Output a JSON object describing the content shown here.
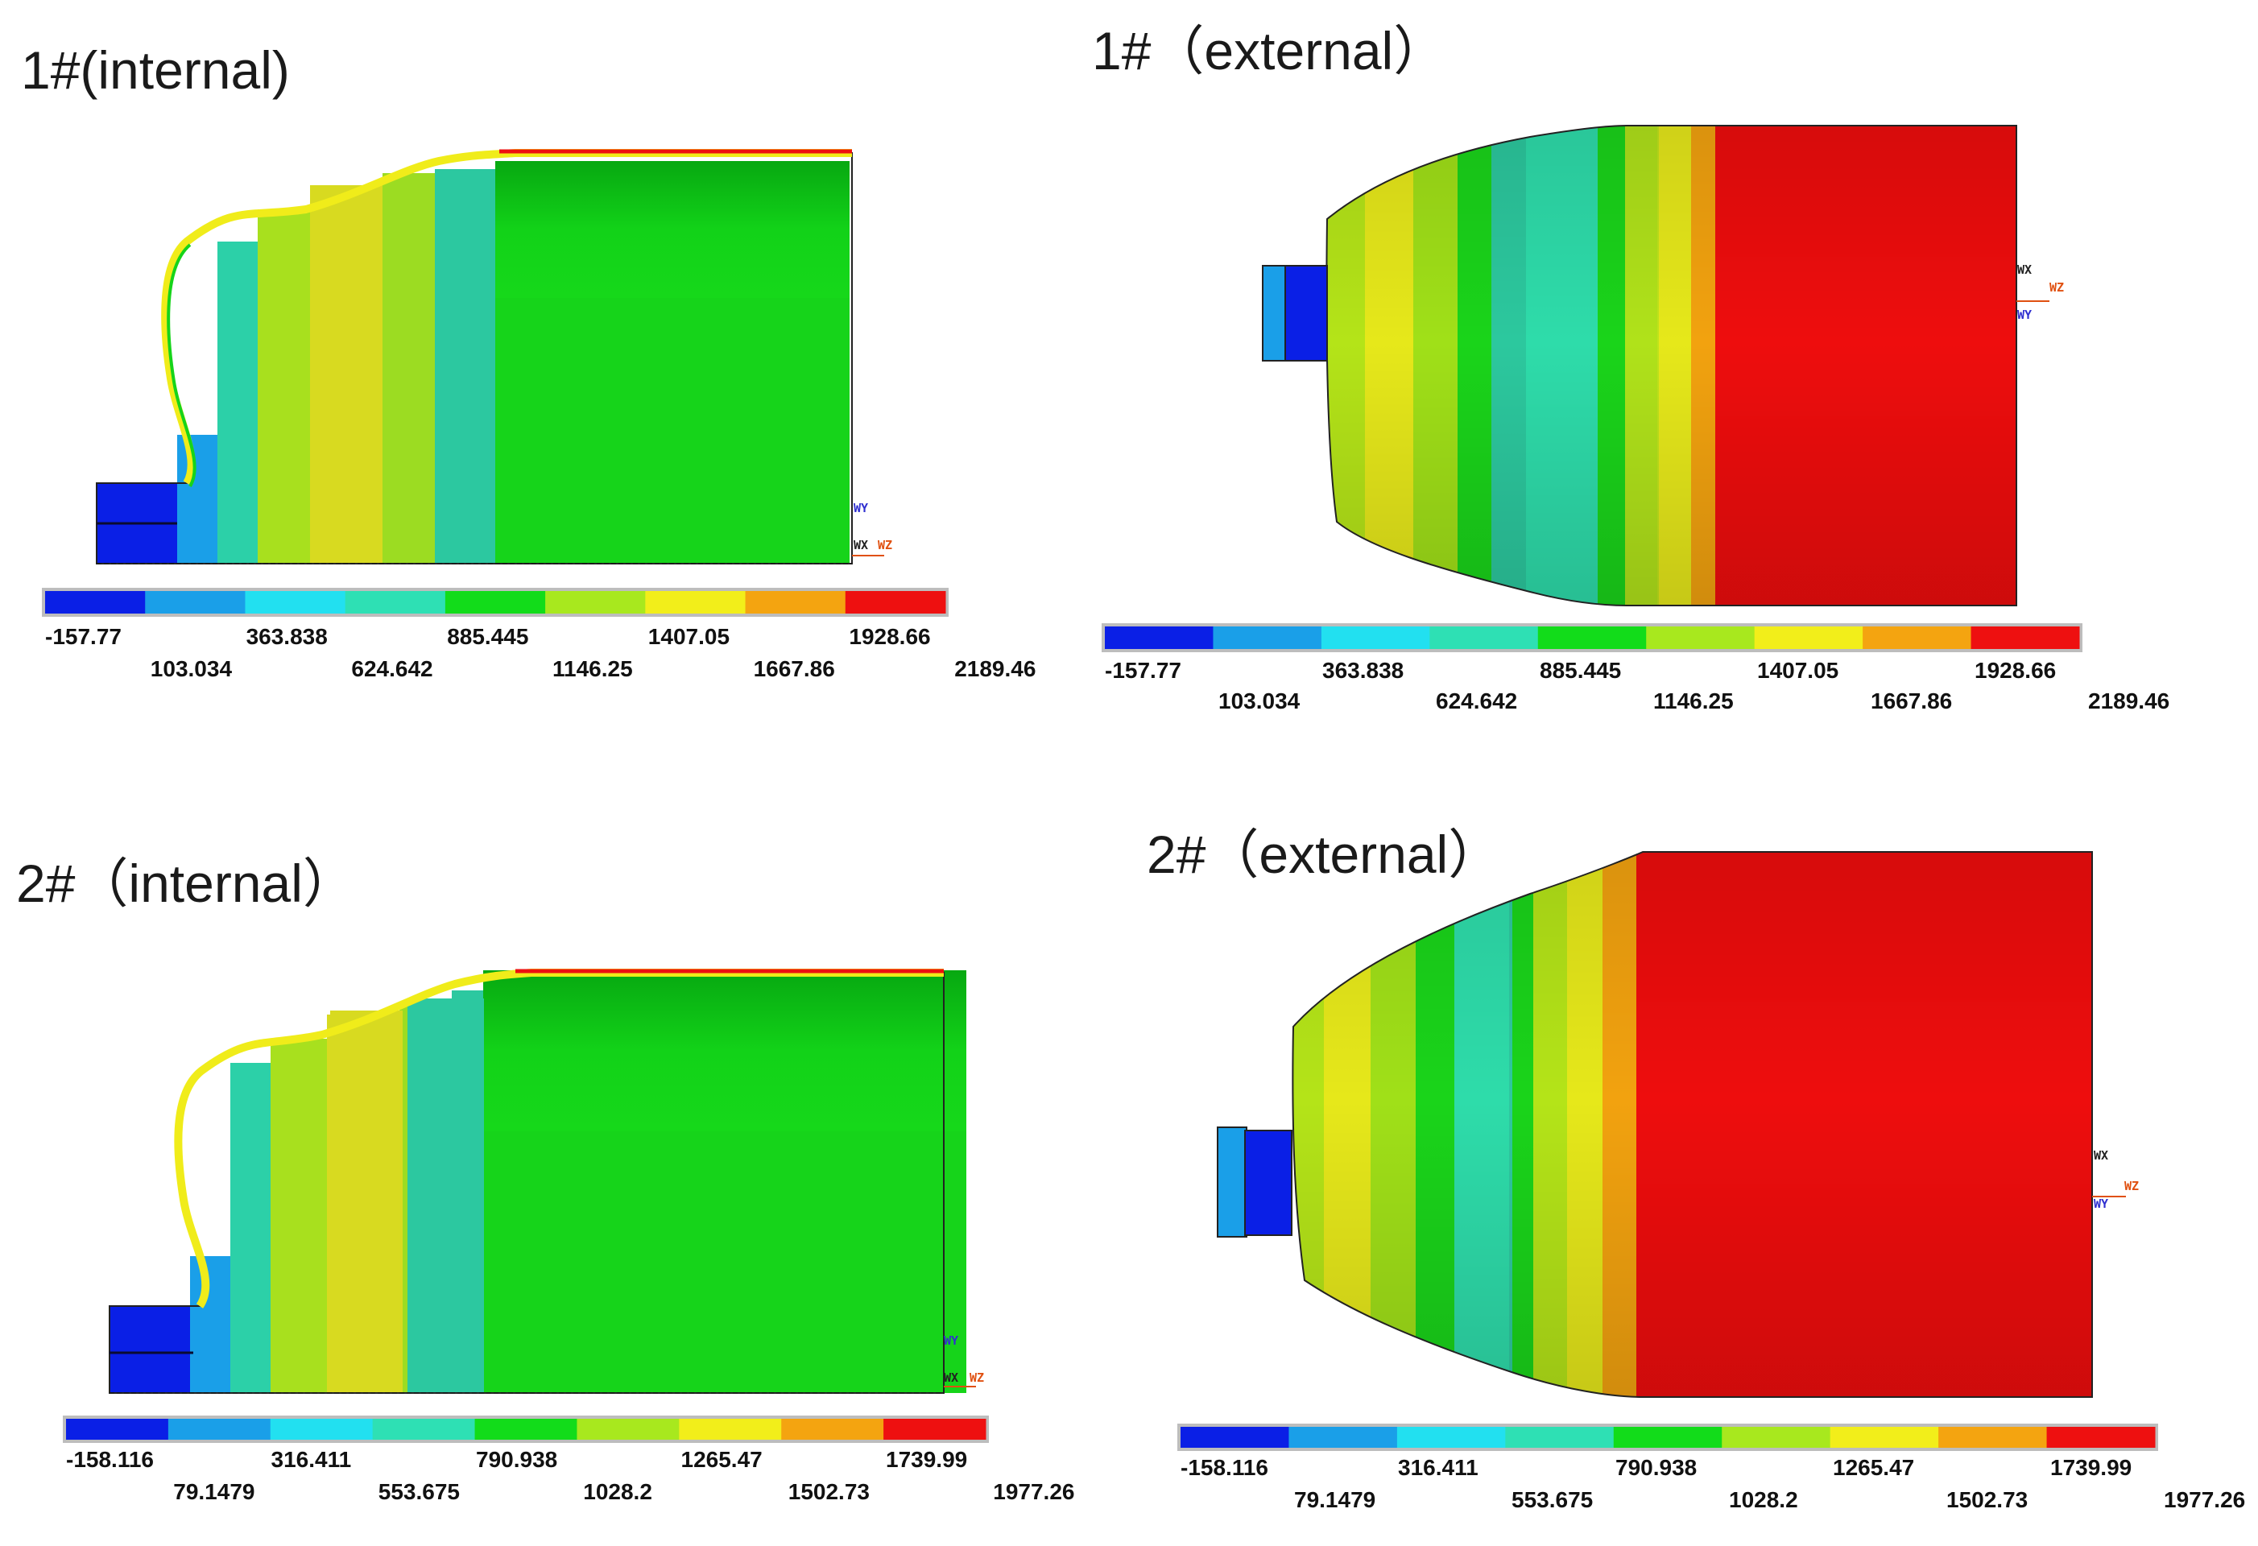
{
  "panels": [
    {
      "title": "1#(internal)",
      "view": "internal",
      "legend_values_upper": [
        "-157.77",
        "363.838",
        "885.445",
        "1407.05",
        "1928.66"
      ],
      "legend_values_lower": [
        "103.034",
        "624.642",
        "1146.25",
        "1667.86",
        "2189.46"
      ],
      "axis_labels": [
        "WY",
        "WX",
        "WZ"
      ]
    },
    {
      "title": "1#（external）",
      "view": "external",
      "legend_values_upper": [
        "-157.77",
        "363.838",
        "885.445",
        "1407.05",
        "1928.66"
      ],
      "legend_values_lower": [
        "103.034",
        "624.642",
        "1146.25",
        "1667.86",
        "2189.46"
      ],
      "axis_labels": [
        "WX",
        "WZ",
        "WY"
      ]
    },
    {
      "title": "2#（internal）",
      "view": "internal",
      "legend_values_upper": [
        "-158.116",
        "316.411",
        "790.938",
        "1265.47",
        "1739.99"
      ],
      "legend_values_lower": [
        "79.1479",
        "553.675",
        "1028.2",
        "1502.73",
        "1977.26"
      ],
      "axis_labels": [
        "WY",
        "WX",
        "WZ"
      ]
    },
    {
      "title": "2#（external）",
      "view": "external",
      "legend_values_upper": [
        "-158.116",
        "316.411",
        "790.938",
        "1265.47",
        "1739.99"
      ],
      "legend_values_lower": [
        "79.1479",
        "553.675",
        "1028.2",
        "1502.73",
        "1977.26"
      ],
      "axis_labels": [
        "WX",
        "WZ",
        "WY"
      ]
    }
  ],
  "legend_colors": [
    "#0a1fe6",
    "#1a9fe8",
    "#22e0f0",
    "#2ee0b4",
    "#12dc1a",
    "#a8e81e",
    "#f2ee1a",
    "#f4a410",
    "#ee1010"
  ],
  "colors": {
    "internal_body": "#18d81a",
    "internal_dark_band": "#0ea014",
    "internal_cyan_band": "#2cc8a0",
    "internal_yellow_band": "#c8d820",
    "external_red": "#ee0d0d",
    "external_orange": "#f2a20f",
    "external_yellow": "#e6e81a",
    "external_lime": "#b4e418",
    "external_green": "#1ad41a",
    "external_teal": "#2edcaa",
    "core_blue": "#0a1fe6",
    "core_skyblue": "#1a9fe8"
  }
}
